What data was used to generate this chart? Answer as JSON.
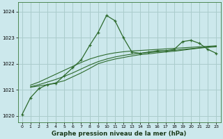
{
  "title": "Graphe pression niveau de la mer (hPa)",
  "background_color": "#cce8ec",
  "grid_color": "#aacccc",
  "line_color": "#2d6a2d",
  "xlim": [
    -0.5,
    23.5
  ],
  "ylim": [
    1019.75,
    1024.35
  ],
  "yticks": [
    1020,
    1021,
    1022,
    1023,
    1024
  ],
  "xticks": [
    0,
    1,
    2,
    3,
    4,
    5,
    6,
    7,
    8,
    9,
    10,
    11,
    12,
    13,
    14,
    15,
    16,
    17,
    18,
    19,
    20,
    21,
    22,
    23
  ],
  "main_y": [
    1020.05,
    1020.7,
    1021.05,
    1021.2,
    1021.25,
    1021.55,
    1021.85,
    1022.15,
    1022.7,
    1023.2,
    1023.85,
    1023.65,
    1023.0,
    1022.45,
    1022.4,
    1022.45,
    1022.5,
    1022.5,
    1022.55,
    1022.85,
    1022.9,
    1022.78,
    1022.55,
    1022.4
  ],
  "line2_y": [
    1021.05,
    1021.1,
    1021.15,
    1021.2,
    1021.27,
    1021.35,
    1021.5,
    1021.65,
    1021.82,
    1022.0,
    1022.1,
    1022.18,
    1022.24,
    1022.3,
    1022.35,
    1022.38,
    1022.42,
    1022.45,
    1022.48,
    1022.52,
    1022.56,
    1022.6,
    1022.63,
    1022.65
  ],
  "line3_y": [
    1021.05,
    1021.12,
    1021.2,
    1021.3,
    1021.4,
    1021.52,
    1021.65,
    1021.8,
    1021.95,
    1022.08,
    1022.18,
    1022.26,
    1022.32,
    1022.37,
    1022.4,
    1022.43,
    1022.46,
    1022.49,
    1022.52,
    1022.55,
    1022.58,
    1022.61,
    1022.64,
    1022.67
  ],
  "line4_y": [
    1021.05,
    1021.18,
    1021.3,
    1021.45,
    1021.6,
    1021.75,
    1021.9,
    1022.05,
    1022.18,
    1022.28,
    1022.36,
    1022.42,
    1022.46,
    1022.49,
    1022.51,
    1022.53,
    1022.55,
    1022.57,
    1022.59,
    1022.61,
    1022.63,
    1022.65,
    1022.67,
    1022.69
  ]
}
